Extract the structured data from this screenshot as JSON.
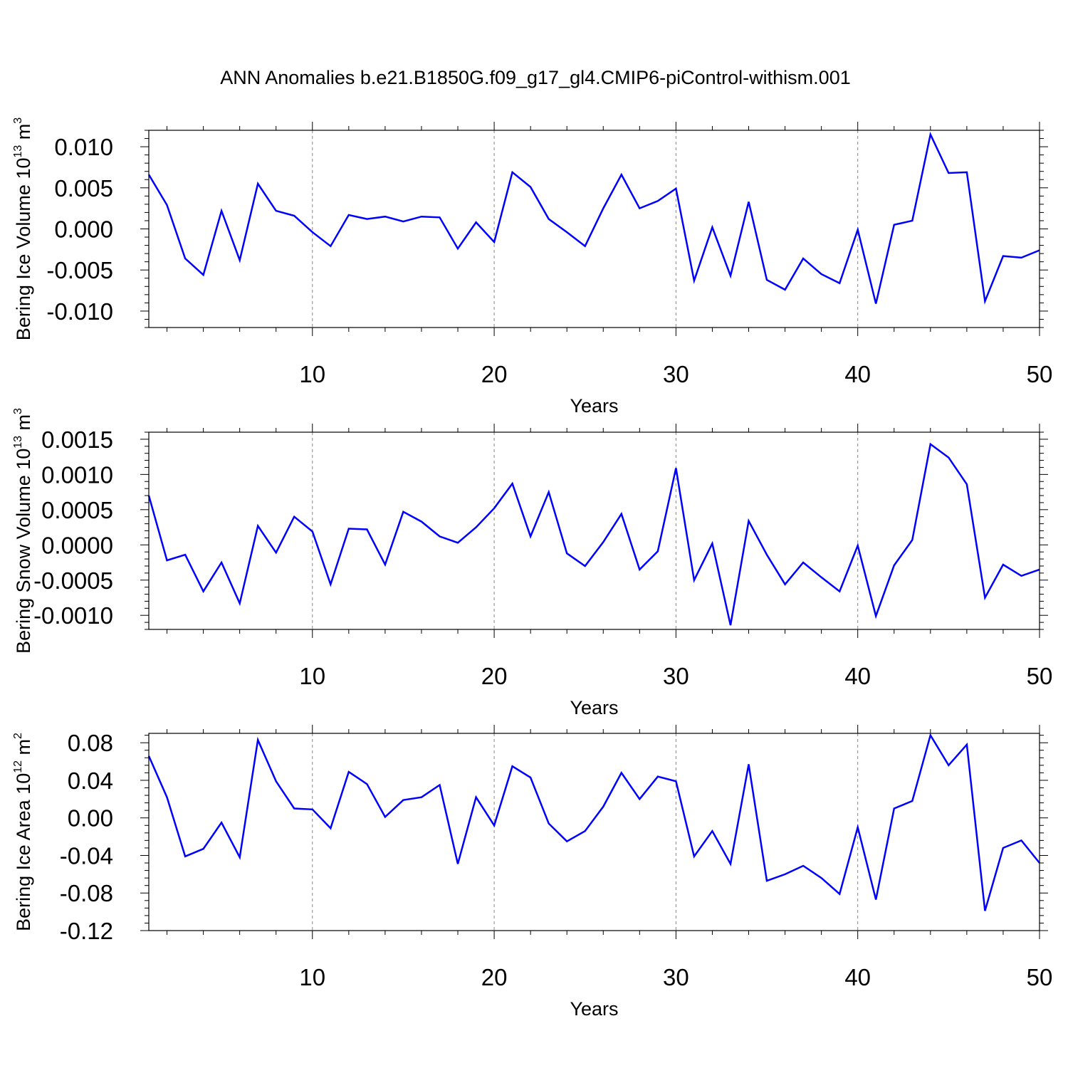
{
  "page_title": "ANN Anomalies b.e21.B1850G.f09_g17_gl4.CMIP6-piControl-withism.001",
  "chart_data": [
    {
      "type": "line",
      "ylabel_text": "Bering Ice Volume 10",
      "ylabel_exp": "13",
      "ylabel_unit": "m",
      "ylabel_unit_exp": "3",
      "xlabel": "Years",
      "xlim": [
        1,
        50
      ],
      "ylim": [
        -0.012,
        0.012
      ],
      "yticks": [
        -0.01,
        -0.005,
        0.0,
        0.005,
        0.01
      ],
      "ytick_labels": [
        "-0.010",
        "-0.005",
        "0.000",
        "0.005",
        "0.010"
      ],
      "xticks": [
        10,
        20,
        30,
        40,
        50
      ],
      "xtick_labels": [
        "10",
        "20",
        "30",
        "40",
        "50"
      ],
      "grid": "dashed vertical at x ticks",
      "line_color": "#0000ff",
      "series": [
        {
          "values": [
            0.0066,
            0.0029,
            -0.0036,
            -0.0056,
            0.0022,
            -0.0038,
            0.0055,
            0.0022,
            0.0016,
            -0.0004,
            -0.0021,
            0.0017,
            0.0012,
            0.0015,
            0.0009,
            0.0015,
            0.0014,
            -0.0024,
            0.0008,
            -0.0016,
            0.0069,
            0.0051,
            0.0012,
            -0.0004,
            -0.0021,
            0.0025,
            0.0066,
            0.0025,
            0.0034,
            0.0049,
            -0.0063,
            0.0002,
            -0.0057,
            0.0033,
            -0.0062,
            -0.0074,
            -0.0036,
            -0.0055,
            -0.0066,
            -0.0001,
            -0.0091,
            0.0005,
            0.001,
            0.0115,
            0.0068,
            0.0069,
            -0.0088,
            -0.0033,
            -0.0035,
            -0.0026
          ]
        }
      ]
    },
    {
      "type": "line",
      "ylabel_text": "Bering Snow Volume 10",
      "ylabel_exp": "13",
      "ylabel_unit": "m",
      "ylabel_unit_exp": "3",
      "xlabel": "Years",
      "xlim": [
        1,
        50
      ],
      "ylim": [
        -0.0012,
        0.0016
      ],
      "yticks": [
        -0.001,
        -0.0005,
        0.0,
        0.0005,
        0.001,
        0.0015
      ],
      "ytick_labels": [
        "-0.0010",
        "-0.0005",
        "0.0000",
        "0.0005",
        "0.0010",
        "0.0015"
      ],
      "xticks": [
        10,
        20,
        30,
        40,
        50
      ],
      "xtick_labels": [
        "10",
        "20",
        "30",
        "40",
        "50"
      ],
      "grid": "dashed vertical at x ticks",
      "line_color": "#0000ff",
      "series": [
        {
          "values": [
            0.0007,
            -0.00022,
            -0.00014,
            -0.00066,
            -0.00025,
            -0.00083,
            0.00027,
            -0.00011,
            0.0004,
            0.00019,
            -0.00056,
            0.00023,
            0.00022,
            -0.00028,
            0.00047,
            0.00033,
            0.00012,
            3e-05,
            0.00025,
            0.00052,
            0.00087,
            0.00012,
            0.00075,
            -0.00012,
            -0.0003,
            4e-05,
            0.00044,
            -0.00035,
            -9e-05,
            0.00109,
            -0.0005,
            2e-05,
            -0.00114,
            0.00034,
            -0.00014,
            -0.00056,
            -0.00025,
            -0.00046,
            -0.00066,
            -1e-05,
            -0.00101,
            -0.00029,
            7e-05,
            0.00143,
            0.00124,
            0.00086,
            -0.00075,
            -0.00028,
            -0.00044,
            -0.00035
          ]
        }
      ]
    },
    {
      "type": "line",
      "ylabel_text": "Bering Ice Area 10",
      "ylabel_exp": "12",
      "ylabel_unit": "m",
      "ylabel_unit_exp": "2",
      "xlabel": "Years",
      "xlim": [
        1,
        50
      ],
      "ylim": [
        -0.12,
        0.09
      ],
      "yticks": [
        -0.12,
        -0.08,
        -0.04,
        0.0,
        0.04,
        0.08
      ],
      "ytick_labels": [
        "-0.12",
        "-0.08",
        "-0.04",
        "0.00",
        "0.04",
        "0.08"
      ],
      "xticks": [
        10,
        20,
        30,
        40,
        50
      ],
      "xtick_labels": [
        "10",
        "20",
        "30",
        "40",
        "50"
      ],
      "grid": "dashed vertical at x ticks",
      "line_color": "#0000ff",
      "series": [
        {
          "values": [
            0.066,
            0.022,
            -0.041,
            -0.033,
            -0.005,
            -0.042,
            0.083,
            0.039,
            0.01,
            0.009,
            -0.011,
            0.049,
            0.036,
            0.001,
            0.019,
            0.022,
            0.035,
            -0.049,
            0.022,
            -0.008,
            0.055,
            0.043,
            -0.006,
            -0.025,
            -0.014,
            0.012,
            0.048,
            0.02,
            0.044,
            0.039,
            -0.041,
            -0.014,
            -0.049,
            0.057,
            -0.067,
            -0.06,
            -0.051,
            -0.064,
            -0.081,
            -0.01,
            -0.087,
            0.01,
            0.018,
            0.088,
            0.056,
            0.078,
            -0.099,
            -0.032,
            -0.024,
            -0.048
          ]
        }
      ]
    }
  ]
}
